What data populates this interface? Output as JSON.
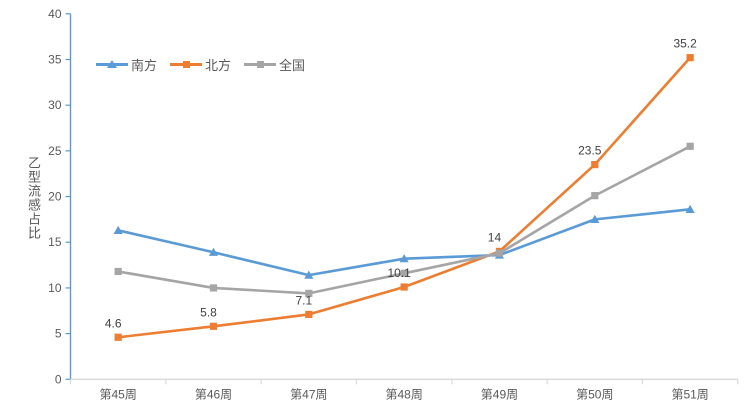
{
  "chart_data": {
    "type": "line",
    "title": "",
    "xlabel": "",
    "ylabel": "乙型流感占比",
    "categories": [
      "第45周",
      "第46周",
      "第47周",
      "第48周",
      "第49周",
      "第50周",
      "第51周"
    ],
    "series": [
      {
        "name": "南方",
        "color": "#5B9BD5",
        "marker": "triangle",
        "values": [
          16.3,
          13.9,
          11.4,
          13.2,
          13.6,
          17.5,
          18.6
        ]
      },
      {
        "name": "北方",
        "color": "#ED7D31",
        "marker": "square",
        "values": [
          4.6,
          5.8,
          7.1,
          10.1,
          14,
          23.5,
          35.2
        ],
        "data_labels": [
          "4.6",
          "5.8",
          "7.1",
          "10.1",
          "14",
          "23.5",
          "35.2"
        ]
      },
      {
        "name": "全国",
        "color": "#A5A5A5",
        "marker": "square",
        "values": [
          11.8,
          10,
          9.4,
          11.6,
          13.8,
          20.1,
          25.5
        ]
      }
    ],
    "ylim": [
      0,
      40
    ],
    "ytick_step": 5,
    "y_tick_labels": [
      "0",
      "5",
      "10",
      "15",
      "20",
      "25",
      "30",
      "35",
      "40"
    ],
    "grid": false,
    "legend_position": "top-left-inside",
    "colors": {
      "background": "#FFFFFF",
      "y_axis": "#5B9BD5",
      "x_axis": "#D9D9D9",
      "tick_label": "#595959",
      "data_label": "#404040",
      "legend_text": "#595959"
    }
  }
}
